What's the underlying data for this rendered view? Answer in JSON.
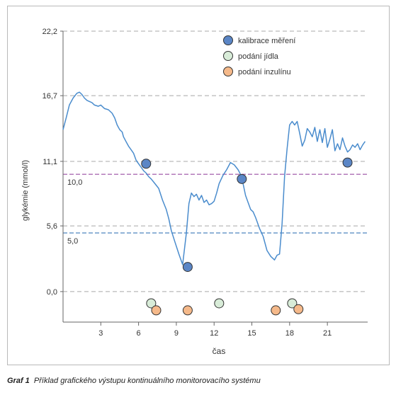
{
  "caption": {
    "label": "Graf 1",
    "text": "Příklad grafického výstupu kontinuálního monitorovacího systému"
  },
  "chart_data": {
    "type": "line",
    "xlabel": "čas",
    "ylabel": "glykémie (mmol/l)",
    "xlim": [
      0,
      24.2
    ],
    "ylim": [
      -2.6,
      22.2
    ],
    "x_ticks": [
      3,
      6,
      9,
      12,
      15,
      18,
      21
    ],
    "x_tick_labels": [
      "3",
      "6",
      "9",
      "12",
      "15",
      "18",
      "21"
    ],
    "y_ticks": [
      0.0,
      5.6,
      11.1,
      16.7,
      22.2
    ],
    "y_tick_labels": [
      "0,0",
      "5,6",
      "11,1",
      "16,7",
      "22,2"
    ],
    "grid": true,
    "legend_position": "top-center",
    "line_color": "#4a8ccd",
    "thresholds": [
      {
        "value": 10.0,
        "label": "10,0",
        "color": "#9a4fa3"
      },
      {
        "value": 5.0,
        "label": "5,0",
        "color": "#3a78b8"
      }
    ],
    "series": [
      {
        "x": [
          0.0,
          0.25,
          0.5,
          0.8,
          1.1,
          1.3,
          1.5,
          1.7,
          1.9,
          2.1,
          2.3,
          2.5,
          2.8,
          3.0,
          3.3,
          3.6,
          3.9,
          4.1,
          4.3,
          4.5,
          4.7,
          4.8,
          5.0,
          5.2,
          5.4,
          5.6,
          5.8,
          6.0,
          6.2,
          6.4,
          6.6,
          6.8,
          7.0,
          7.3,
          7.6,
          7.9,
          8.2,
          8.4,
          8.6,
          8.9,
          9.2,
          9.5,
          9.8,
          10.0,
          10.2,
          10.4,
          10.6,
          10.8,
          11.0,
          11.2,
          11.4,
          11.6,
          11.8,
          12.0,
          12.2,
          12.4,
          12.7,
          13.0,
          13.3,
          13.6,
          13.9,
          14.1,
          14.3,
          14.5,
          14.7,
          14.9,
          15.1,
          15.3,
          15.6,
          15.9,
          16.2,
          16.5,
          16.8,
          17.0,
          17.2,
          17.4,
          17.6,
          17.8,
          18.0,
          18.2,
          18.4,
          18.6,
          18.8,
          19.0,
          19.2,
          19.4,
          19.6,
          19.8,
          20.0,
          20.2,
          20.4,
          20.6,
          20.8,
          21.0,
          21.2,
          21.4,
          21.6,
          21.8,
          22.0,
          22.2,
          22.4,
          22.6,
          22.8,
          23.0,
          23.2,
          23.4,
          23.6,
          23.8,
          24.0
        ],
        "y": [
          13.8,
          14.8,
          15.9,
          16.5,
          16.9,
          17.0,
          16.8,
          16.5,
          16.3,
          16.2,
          16.1,
          15.9,
          15.8,
          15.9,
          15.6,
          15.5,
          15.2,
          14.8,
          14.2,
          13.8,
          13.6,
          13.2,
          12.8,
          12.4,
          12.1,
          11.8,
          11.2,
          10.9,
          10.6,
          10.3,
          10.1,
          9.8,
          9.6,
          9.2,
          8.8,
          7.8,
          7.0,
          6.2,
          5.2,
          4.2,
          3.2,
          2.3,
          5.0,
          7.5,
          8.4,
          8.1,
          8.3,
          7.8,
          8.2,
          7.6,
          7.8,
          7.4,
          7.5,
          7.7,
          8.4,
          9.2,
          9.9,
          10.4,
          11.0,
          10.8,
          10.4,
          10.0,
          9.2,
          8.2,
          7.6,
          7.0,
          6.8,
          6.3,
          5.4,
          4.7,
          3.5,
          3.0,
          2.7,
          3.1,
          3.2,
          5.8,
          9.8,
          12.2,
          14.2,
          14.5,
          14.2,
          14.5,
          13.5,
          12.4,
          12.9,
          13.9,
          13.6,
          13.2,
          14.0,
          12.8,
          13.8,
          12.7,
          13.9,
          12.3,
          13.0,
          13.8,
          12.0,
          12.6,
          12.1,
          13.1,
          12.4,
          11.9,
          12.1,
          12.5,
          12.3,
          12.6,
          12.1,
          12.5,
          12.8
        ]
      }
    ],
    "markers": [
      {
        "name": "kalibrace měření",
        "color": "#5b86c6",
        "points": [
          [
            6.6,
            10.9
          ],
          [
            9.9,
            2.1
          ],
          [
            14.2,
            9.6
          ],
          [
            22.6,
            11.0
          ]
        ]
      },
      {
        "name": "podání jídla",
        "color": "#d8ecd8",
        "points": [
          [
            7.0,
            -1.0
          ],
          [
            12.4,
            -1.0
          ],
          [
            18.2,
            -1.0
          ]
        ]
      },
      {
        "name": "podání inzulínu",
        "color": "#f5b98a",
        "points": [
          [
            7.4,
            -1.6
          ],
          [
            9.9,
            -1.6
          ],
          [
            16.9,
            -1.6
          ],
          [
            18.7,
            -1.5
          ]
        ]
      }
    ]
  }
}
